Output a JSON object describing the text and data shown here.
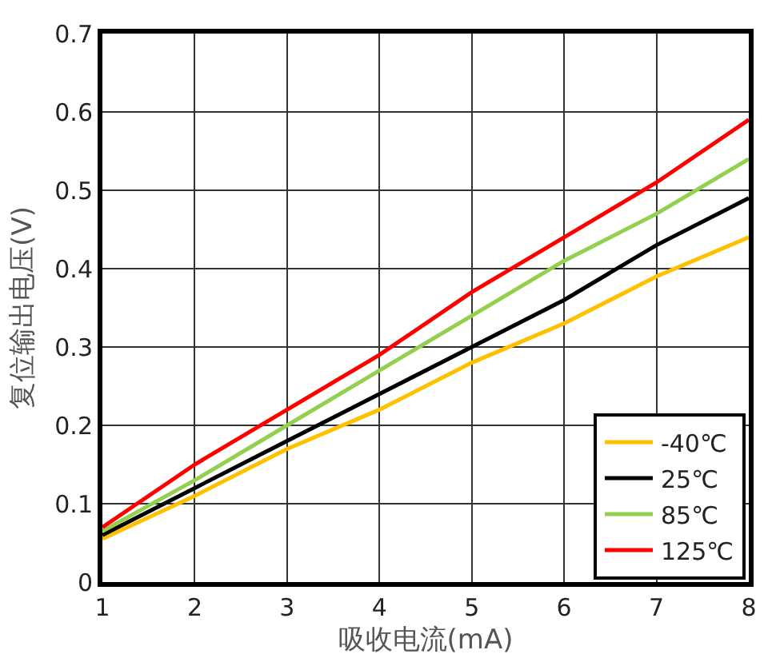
{
  "chart_data": {
    "type": "line",
    "xlabel": "吸收电流(mA)",
    "ylabel": "复位输出电压(V)",
    "x": [
      1,
      2,
      3,
      4,
      5,
      6,
      7,
      8
    ],
    "xlim": [
      1,
      8
    ],
    "xticks": [
      1,
      2,
      3,
      4,
      5,
      6,
      7,
      8
    ],
    "ylim": [
      0,
      0.7
    ],
    "yticks": [
      0,
      0.1,
      0.2,
      0.3,
      0.4,
      0.5,
      0.6,
      0.7
    ],
    "grid": true,
    "legend": "bottom right",
    "marker": "none",
    "line_style": "solid",
    "series": [
      {
        "name": "-40℃",
        "color": "#ffc000",
        "values": [
          0.055,
          0.11,
          0.17,
          0.22,
          0.28,
          0.33,
          0.39,
          0.44
        ]
      },
      {
        "name": "25℃",
        "color": "#000000",
        "values": [
          0.06,
          0.12,
          0.18,
          0.24,
          0.3,
          0.36,
          0.43,
          0.49
        ]
      },
      {
        "name": "85℃",
        "color": "#92d050",
        "values": [
          0.065,
          0.13,
          0.2,
          0.27,
          0.34,
          0.41,
          0.47,
          0.54
        ]
      },
      {
        "name": "125℃",
        "color": "#ff0000",
        "values": [
          0.07,
          0.15,
          0.22,
          0.29,
          0.37,
          0.44,
          0.51,
          0.59
        ]
      }
    ]
  }
}
